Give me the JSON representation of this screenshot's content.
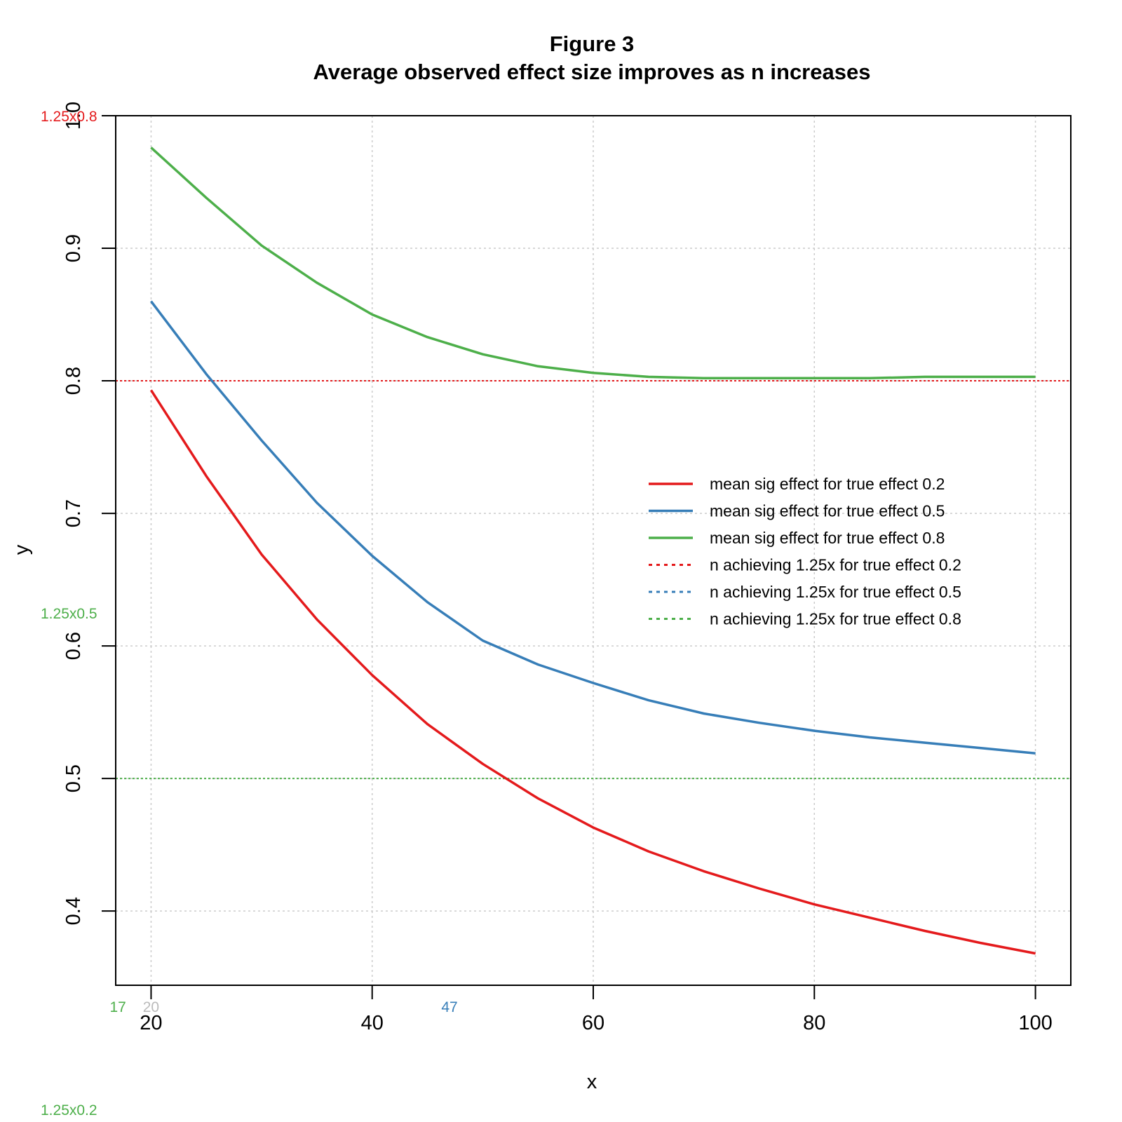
{
  "chart_data": {
    "type": "line",
    "title": "Figure 3",
    "subtitle": "Average observed effect size improves as n increases",
    "xlabel": "x",
    "ylabel": "y",
    "xlim": [
      16.8,
      103.2
    ],
    "ylim": [
      0.344,
      1.0
    ],
    "grid": true,
    "legend_position": "right",
    "x_ticks": [
      20,
      40,
      60,
      80,
      100
    ],
    "x_tick_labels": [
      "20",
      "40",
      "60",
      "80",
      "100"
    ],
    "y_ticks": [
      0.4,
      0.5,
      0.6,
      0.7,
      0.8,
      0.9,
      1.0
    ],
    "y_tick_labels": [
      "0.4",
      "0.5",
      "0.6",
      "0.7",
      "0.8",
      "0.9",
      "1.0"
    ],
    "x": [
      20,
      25,
      30,
      35,
      40,
      45,
      50,
      55,
      60,
      65,
      70,
      75,
      80,
      85,
      90,
      95,
      100
    ],
    "series": [
      {
        "name": "mean sig effect for true effect 0.2",
        "color": "#e41a1c",
        "style": "solid",
        "values": [
          0.793,
          0.728,
          0.669,
          0.62,
          0.578,
          0.541,
          0.511,
          0.485,
          0.463,
          0.445,
          0.43,
          0.417,
          0.405,
          0.395,
          0.385,
          0.376,
          0.368
        ]
      },
      {
        "name": "mean sig effect for true effect 0.5",
        "color": "#377eb8",
        "style": "solid",
        "values": [
          0.86,
          0.805,
          0.755,
          0.708,
          0.668,
          0.633,
          0.604,
          0.586,
          0.572,
          0.559,
          0.549,
          0.542,
          0.536,
          0.531,
          0.527,
          0.523,
          0.519
        ]
      },
      {
        "name": "mean sig effect for true effect 0.8",
        "color": "#4daf4a",
        "style": "solid",
        "values": [
          0.976,
          0.938,
          0.902,
          0.874,
          0.85,
          0.833,
          0.82,
          0.811,
          0.806,
          0.803,
          0.802,
          0.802,
          0.802,
          0.802,
          0.803,
          0.803,
          0.803
        ]
      }
    ],
    "legend_entries": [
      {
        "label": "mean sig effect for true effect 0.2",
        "color": "#e41a1c",
        "style": "solid"
      },
      {
        "label": "mean sig effect for true effect 0.5",
        "color": "#377eb8",
        "style": "solid"
      },
      {
        "label": "mean sig effect for true effect 0.8",
        "color": "#4daf4a",
        "style": "solid"
      },
      {
        "label": "n achieving 1.25x for true effect 0.2",
        "color": "#e41a1c",
        "style": "dotted"
      },
      {
        "label": "n achieving 1.25x for true effect 0.5",
        "color": "#377eb8",
        "style": "dotted"
      },
      {
        "label": "n achieving 1.25x for true effect 0.8",
        "color": "#4daf4a",
        "style": "dotted"
      }
    ],
    "hlines": [
      {
        "y": 1.0,
        "color": "#e41a1c",
        "label": "1.25x0.8",
        "label_color": "#e41a1c",
        "label_y": 1.0
      },
      {
        "y": 0.8,
        "color": "#e41a1c",
        "label": "",
        "label_color": "#e41a1c",
        "label_y": 0.8
      },
      {
        "y": 0.5,
        "color": "#4daf4a",
        "label": "1.25x0.5",
        "label_color": "#4daf4a",
        "label_y": 0.625
      },
      {
        "y": 0.25,
        "color": "#4daf4a",
        "label": "1.25x0.2",
        "label_color": "#4daf4a",
        "label_y": 0.25
      }
    ],
    "vline_labels": [
      {
        "x": 17,
        "label": "17",
        "color": "#4daf4a"
      },
      {
        "x": 20,
        "label": "20",
        "color": "#bbbbbb"
      },
      {
        "x": 47,
        "label": "47",
        "color": "#377eb8"
      }
    ]
  }
}
